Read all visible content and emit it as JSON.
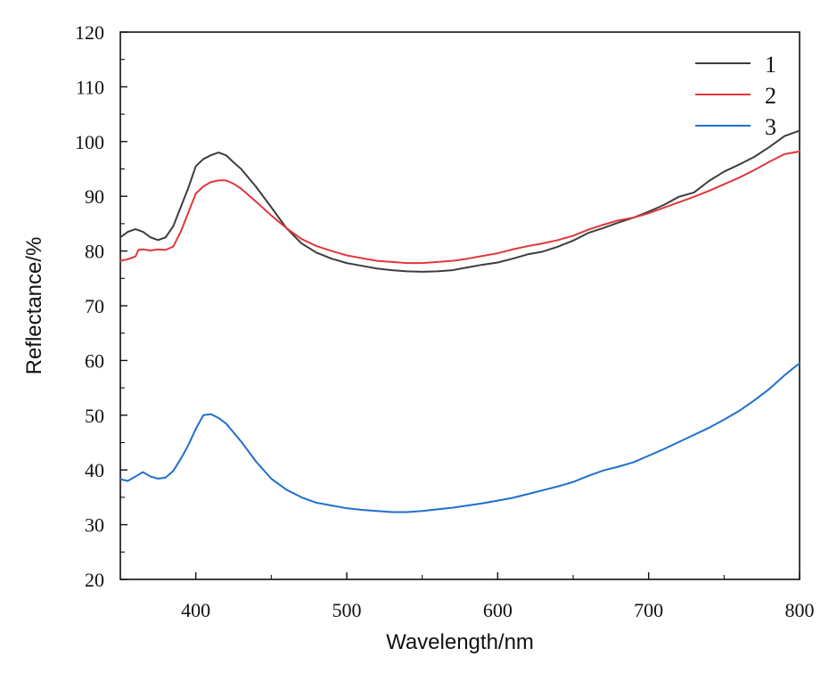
{
  "chart_data": {
    "type": "line",
    "title": "",
    "xlabel": "Wavelength/nm",
    "ylabel": "Reflectance/%",
    "xlim": [
      350,
      800
    ],
    "ylim": [
      20,
      120
    ],
    "xticks": [
      400,
      500,
      600,
      700,
      800
    ],
    "yticks": [
      20,
      30,
      40,
      50,
      60,
      70,
      80,
      90,
      100,
      110,
      120
    ],
    "grid": false,
    "legend_position": "top-right",
    "series": [
      {
        "name": "1",
        "color": "#3d3d3d",
        "points": [
          [
            350,
            82.5
          ],
          [
            355,
            83.5
          ],
          [
            360,
            84.0
          ],
          [
            365,
            83.5
          ],
          [
            370,
            82.5
          ],
          [
            375,
            82.0
          ],
          [
            380,
            82.5
          ],
          [
            385,
            84.5
          ],
          [
            390,
            88.0
          ],
          [
            395,
            91.5
          ],
          [
            400,
            95.5
          ],
          [
            405,
            96.8
          ],
          [
            410,
            97.5
          ],
          [
            415,
            98.0
          ],
          [
            420,
            97.5
          ],
          [
            425,
            96.2
          ],
          [
            430,
            95.0
          ],
          [
            440,
            91.7
          ],
          [
            450,
            88.0
          ],
          [
            460,
            84.2
          ],
          [
            470,
            81.4
          ],
          [
            480,
            79.7
          ],
          [
            490,
            78.6
          ],
          [
            500,
            77.8
          ],
          [
            510,
            77.3
          ],
          [
            520,
            76.8
          ],
          [
            530,
            76.5
          ],
          [
            540,
            76.3
          ],
          [
            550,
            76.2
          ],
          [
            560,
            76.3
          ],
          [
            570,
            76.5
          ],
          [
            580,
            77.0
          ],
          [
            590,
            77.5
          ],
          [
            600,
            77.9
          ],
          [
            610,
            78.6
          ],
          [
            620,
            79.4
          ],
          [
            630,
            79.9
          ],
          [
            640,
            80.8
          ],
          [
            650,
            81.9
          ],
          [
            660,
            83.3
          ],
          [
            670,
            84.2
          ],
          [
            680,
            85.2
          ],
          [
            690,
            86.1
          ],
          [
            700,
            87.2
          ],
          [
            710,
            88.4
          ],
          [
            720,
            89.9
          ],
          [
            730,
            90.7
          ],
          [
            740,
            92.8
          ],
          [
            750,
            94.5
          ],
          [
            760,
            95.8
          ],
          [
            770,
            97.2
          ],
          [
            780,
            99.0
          ],
          [
            790,
            101.0
          ],
          [
            800,
            102.0
          ]
        ]
      },
      {
        "name": "2",
        "color": "#e0373a",
        "points": [
          [
            350,
            78.2
          ],
          [
            355,
            78.5
          ],
          [
            360,
            79.0
          ],
          [
            362,
            80.2
          ],
          [
            365,
            80.3
          ],
          [
            370,
            80.1
          ],
          [
            375,
            80.3
          ],
          [
            380,
            80.2
          ],
          [
            385,
            80.8
          ],
          [
            390,
            83.5
          ],
          [
            395,
            87.0
          ],
          [
            400,
            90.5
          ],
          [
            405,
            91.8
          ],
          [
            410,
            92.6
          ],
          [
            415,
            92.9
          ],
          [
            420,
            92.9
          ],
          [
            425,
            92.3
          ],
          [
            430,
            91.4
          ],
          [
            440,
            89.0
          ],
          [
            450,
            86.5
          ],
          [
            460,
            84.2
          ],
          [
            470,
            82.2
          ],
          [
            480,
            80.9
          ],
          [
            490,
            80.0
          ],
          [
            500,
            79.2
          ],
          [
            510,
            78.7
          ],
          [
            520,
            78.2
          ],
          [
            530,
            78.0
          ],
          [
            540,
            77.8
          ],
          [
            550,
            77.8
          ],
          [
            560,
            78.0
          ],
          [
            570,
            78.2
          ],
          [
            580,
            78.6
          ],
          [
            590,
            79.1
          ],
          [
            600,
            79.6
          ],
          [
            610,
            80.3
          ],
          [
            620,
            80.9
          ],
          [
            630,
            81.4
          ],
          [
            640,
            82.0
          ],
          [
            650,
            82.8
          ],
          [
            660,
            83.9
          ],
          [
            670,
            84.8
          ],
          [
            680,
            85.6
          ],
          [
            690,
            86.1
          ],
          [
            700,
            86.9
          ],
          [
            710,
            87.9
          ],
          [
            720,
            88.9
          ],
          [
            730,
            89.9
          ],
          [
            740,
            91.0
          ],
          [
            750,
            92.2
          ],
          [
            760,
            93.4
          ],
          [
            770,
            94.8
          ],
          [
            780,
            96.3
          ],
          [
            790,
            97.7
          ],
          [
            800,
            98.2
          ]
        ]
      },
      {
        "name": "3",
        "color": "#1f6fce",
        "points": [
          [
            350,
            38.3
          ],
          [
            355,
            38.0
          ],
          [
            360,
            38.8
          ],
          [
            365,
            39.6
          ],
          [
            370,
            38.8
          ],
          [
            375,
            38.4
          ],
          [
            380,
            38.6
          ],
          [
            385,
            39.8
          ],
          [
            390,
            42.0
          ],
          [
            395,
            44.5
          ],
          [
            400,
            47.5
          ],
          [
            405,
            50.0
          ],
          [
            410,
            50.2
          ],
          [
            415,
            49.5
          ],
          [
            420,
            48.5
          ],
          [
            430,
            45.2
          ],
          [
            440,
            41.5
          ],
          [
            450,
            38.4
          ],
          [
            460,
            36.4
          ],
          [
            470,
            35.0
          ],
          [
            480,
            34.0
          ],
          [
            490,
            33.5
          ],
          [
            500,
            33.0
          ],
          [
            510,
            32.7
          ],
          [
            520,
            32.5
          ],
          [
            530,
            32.3
          ],
          [
            540,
            32.3
          ],
          [
            550,
            32.5
          ],
          [
            560,
            32.8
          ],
          [
            570,
            33.1
          ],
          [
            580,
            33.5
          ],
          [
            590,
            33.9
          ],
          [
            600,
            34.4
          ],
          [
            610,
            34.9
          ],
          [
            620,
            35.6
          ],
          [
            630,
            36.3
          ],
          [
            640,
            37.0
          ],
          [
            650,
            37.8
          ],
          [
            660,
            38.9
          ],
          [
            670,
            39.9
          ],
          [
            680,
            40.6
          ],
          [
            690,
            41.4
          ],
          [
            700,
            42.6
          ],
          [
            710,
            43.8
          ],
          [
            720,
            45.1
          ],
          [
            730,
            46.4
          ],
          [
            740,
            47.7
          ],
          [
            750,
            49.2
          ],
          [
            760,
            50.8
          ],
          [
            770,
            52.7
          ],
          [
            780,
            54.8
          ],
          [
            790,
            57.3
          ],
          [
            800,
            59.5
          ]
        ]
      }
    ]
  }
}
